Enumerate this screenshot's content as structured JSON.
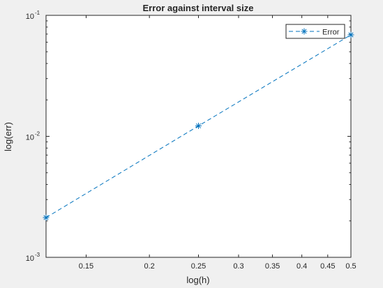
{
  "window": {
    "background": "#f0f0f0"
  },
  "chart_data": {
    "type": "line",
    "title": "Error against interval size",
    "xlabel": "log(h)",
    "ylabel": "log(err)",
    "xscale": "log",
    "yscale": "log",
    "xlim": [
      0.125,
      0.5
    ],
    "ylim": [
      0.001,
      0.1
    ],
    "grid": false,
    "legend_position": "top-right",
    "x_ticks": [
      0.15,
      0.2,
      0.25,
      0.3,
      0.35,
      0.4,
      0.45,
      0.5
    ],
    "x_tick_labels": [
      "0.15",
      "0.2",
      "0.25",
      "0.3",
      "0.35",
      "0.4",
      "0.45",
      "0.5"
    ],
    "y_ticks": [
      {
        "value": 0.001,
        "base": "10",
        "exp": "-3"
      },
      {
        "value": 0.01,
        "base": "10",
        "exp": "-2"
      },
      {
        "value": 0.1,
        "base": "10",
        "exp": "-1"
      }
    ],
    "series": [
      {
        "name": "Error",
        "color": "#0072bd",
        "line_style": "dashed",
        "marker": "asterisk",
        "x": [
          0.125,
          0.25,
          0.5
        ],
        "y": [
          0.00213,
          0.0122,
          0.069
        ]
      }
    ]
  }
}
